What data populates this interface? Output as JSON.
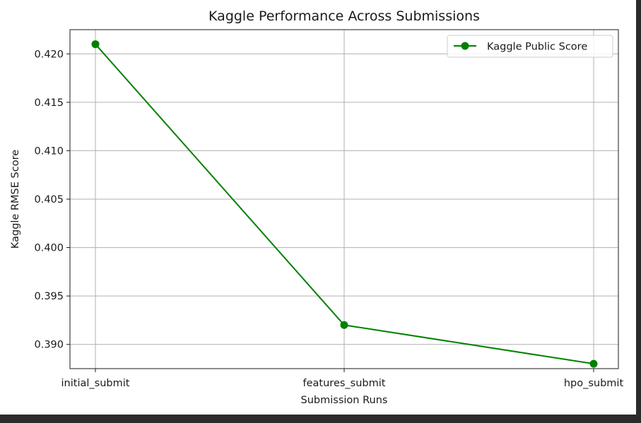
{
  "chart_data": {
    "type": "line",
    "title": "Kaggle Performance Across Submissions",
    "xlabel": "Submission Runs",
    "ylabel": "Kaggle RMSE Score",
    "categories": [
      "initial_submit",
      "features_submit",
      "hpo_submit"
    ],
    "series": [
      {
        "name": "Kaggle Public Score",
        "values": [
          0.421,
          0.392,
          0.388
        ],
        "color": "#008000",
        "marker": "circle"
      }
    ],
    "ylim": [
      0.3875,
      0.4225
    ],
    "yticks": [
      "0.390",
      "0.395",
      "0.400",
      "0.405",
      "0.410",
      "0.415",
      "0.420"
    ],
    "grid": true,
    "legend_position": "top-right"
  }
}
